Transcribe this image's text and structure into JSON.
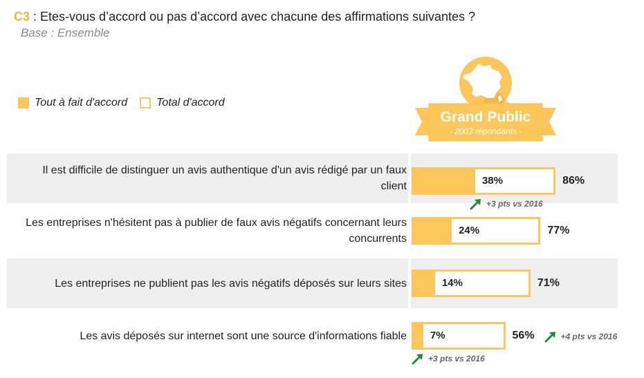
{
  "header": {
    "code": "C3",
    "question": " : Etes-vous d’accord ou pas d’accord avec chacune des affirmations suivantes ?",
    "base": "Base : Ensemble"
  },
  "legend": {
    "full": "Tout à fait d'accord",
    "total": "Total  d'accord"
  },
  "badge": {
    "title": "Grand Public",
    "subtitle": "- 2003 répondants -"
  },
  "colors": {
    "accent": "#fcc75a",
    "row_bg": "#efefef",
    "arrow": "#1e8a3c"
  },
  "chart_data": {
    "type": "bar",
    "categories": [
      "Il est difficile de distinguer un avis authentique d'un avis rédigé par un faux client",
      "Les entreprises n'hésitent pas à publier de faux avis négatifs concernant leurs concurrents",
      "Les entreprises ne publient pas les avis négatifs déposés sur leurs sites",
      "Les avis déposés sur internet sont une source d'informations fiable"
    ],
    "series": [
      {
        "name": "Tout à fait d'accord",
        "values": [
          38,
          24,
          14,
          7
        ]
      },
      {
        "name": "Total  d'accord",
        "values": [
          86,
          77,
          71,
          56
        ]
      }
    ],
    "value_labels": {
      "full": [
        "38%",
        "24%",
        "14%",
        "7%"
      ],
      "total": [
        "86%",
        "77%",
        "71%",
        "56%"
      ]
    },
    "evolutions": {
      "full": [
        "+3 pts vs 2016",
        "",
        "",
        "+3 pts vs 2016"
      ],
      "total": [
        "",
        "",
        "",
        "+4 pts vs 2016"
      ]
    },
    "ylim": [
      0,
      100
    ]
  },
  "rows": [
    {
      "label_lines": [
        "Il est difficile de distinguer un avis authentique d'un avis rédigé par un faux",
        "client"
      ]
    },
    {
      "label_lines": [
        "Les entreprises n'hésitent pas à publier de faux avis négatifs concernant leurs",
        "concurrents"
      ]
    },
    {
      "label_lines": [
        "Les entreprises ne publient pas les avis négatifs déposés sur leurs sites"
      ]
    },
    {
      "label_lines": [
        "Les avis déposés sur internet sont une source d'informations fiable"
      ]
    }
  ]
}
